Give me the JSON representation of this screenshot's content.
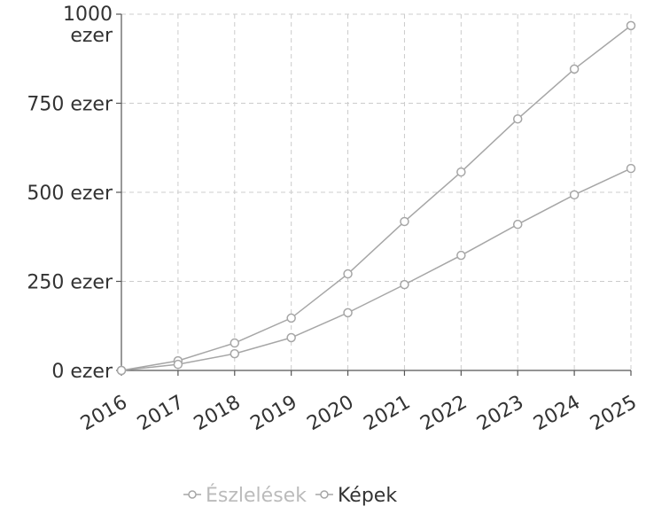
{
  "chart_data": {
    "type": "line",
    "categories": [
      "2016",
      "2017",
      "2018",
      "2019",
      "2020",
      "2021",
      "2022",
      "2023",
      "2024",
      "2025"
    ],
    "series": [
      {
        "name": "Észlelések",
        "color": "#a6a6a6",
        "values": [
          0,
          27,
          77,
          147,
          271,
          418,
          557,
          706,
          846,
          968
        ]
      },
      {
        "name": "Képek",
        "color": "#a6a6a6",
        "values": [
          0,
          17,
          47,
          92,
          162,
          241,
          323,
          410,
          493,
          567
        ]
      }
    ],
    "ylim": [
      0,
      1000
    ],
    "yticks": [
      {
        "value": 0,
        "label": "0 ezer"
      },
      {
        "value": 250,
        "label": "250 ezer"
      },
      {
        "value": 500,
        "label": "500 ezer"
      },
      {
        "value": 750,
        "label": "750 ezer"
      },
      {
        "value": 1000,
        "label": "1000 ezer"
      }
    ],
    "grid": true
  }
}
